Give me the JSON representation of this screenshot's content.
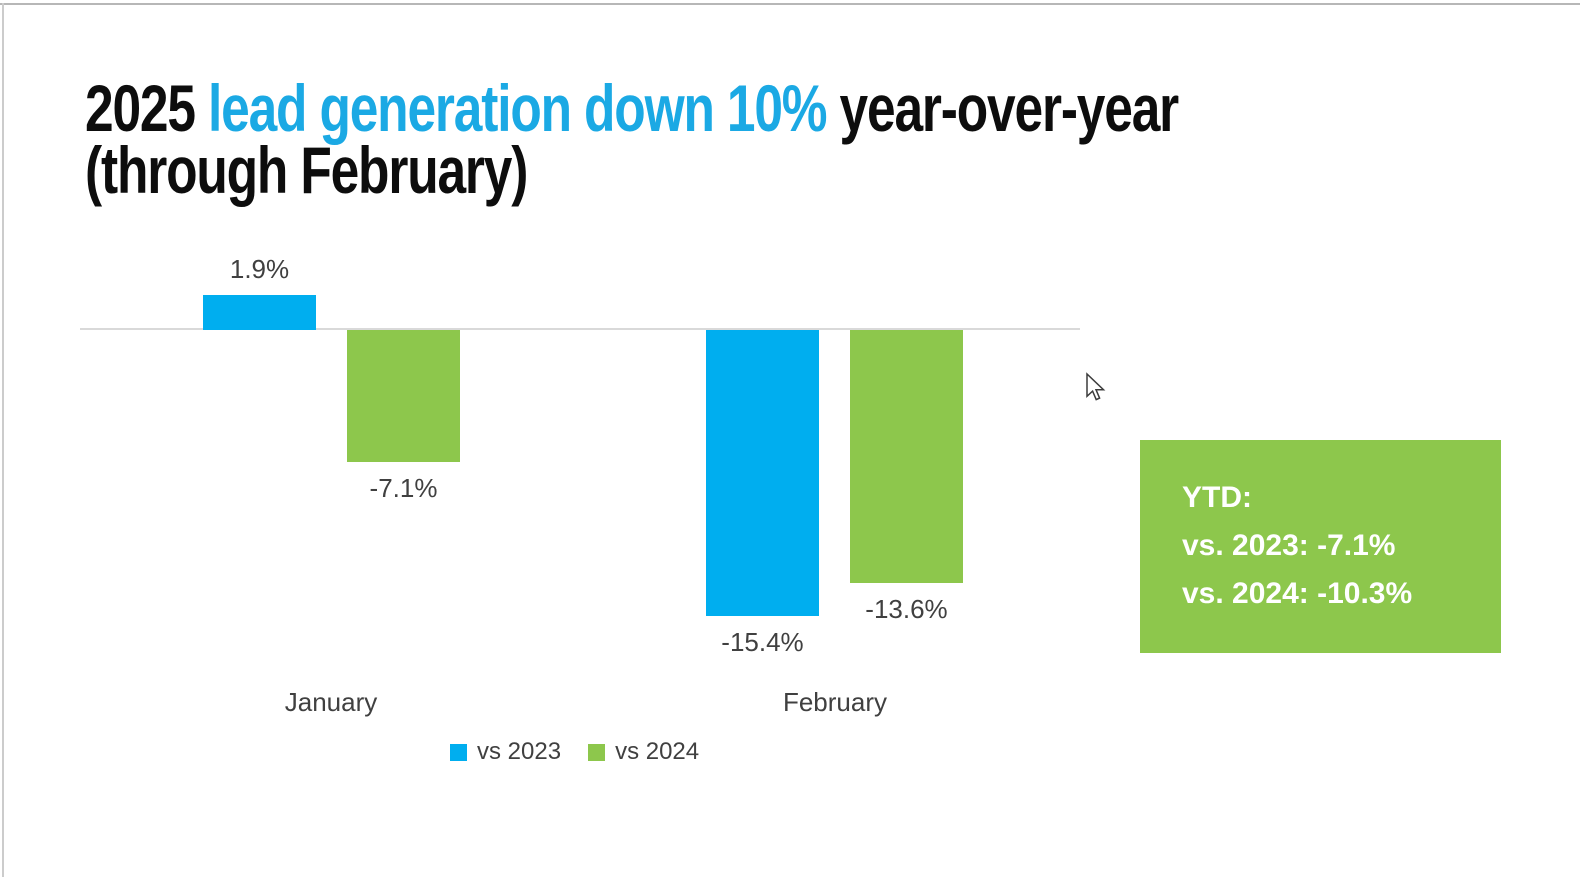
{
  "title": {
    "prefix": "2025 ",
    "highlight": "lead generation down 10%",
    "suffix": " year-over-year",
    "line2": "(through February)"
  },
  "chart_data": {
    "type": "bar",
    "title": "2025 lead generation down 10% year-over-year (through February)",
    "categories": [
      "January",
      "February"
    ],
    "series": [
      {
        "name": "vs 2023",
        "color": "#00AEEF",
        "values": [
          1.9,
          -15.4
        ],
        "labels": [
          "1.9%",
          "-15.4%"
        ]
      },
      {
        "name": "vs 2024",
        "color": "#8DC74C",
        "values": [
          -7.1,
          -13.6
        ],
        "labels": [
          "-7.1%",
          "-13.6%"
        ]
      }
    ],
    "value_format": "percent",
    "baseline": 0,
    "ylim": [
      -17,
      3
    ],
    "grid": false,
    "legend_position": "bottom-center"
  },
  "ytd_box": {
    "background": "#8DC74C",
    "text_color": "#FFFFFF",
    "line1": "YTD:",
    "line2": "vs. 2023: -7.1%",
    "line3": "vs. 2024: -10.3%"
  },
  "colors": {
    "title_accent": "#1BA9E4",
    "title_text": "#0D0D0D",
    "bar_blue": "#00AEEF",
    "bar_green": "#8DC74C",
    "axis_line": "#D9D9D9",
    "label_text": "#404040",
    "canvas_bg": "#FFFFFF"
  }
}
